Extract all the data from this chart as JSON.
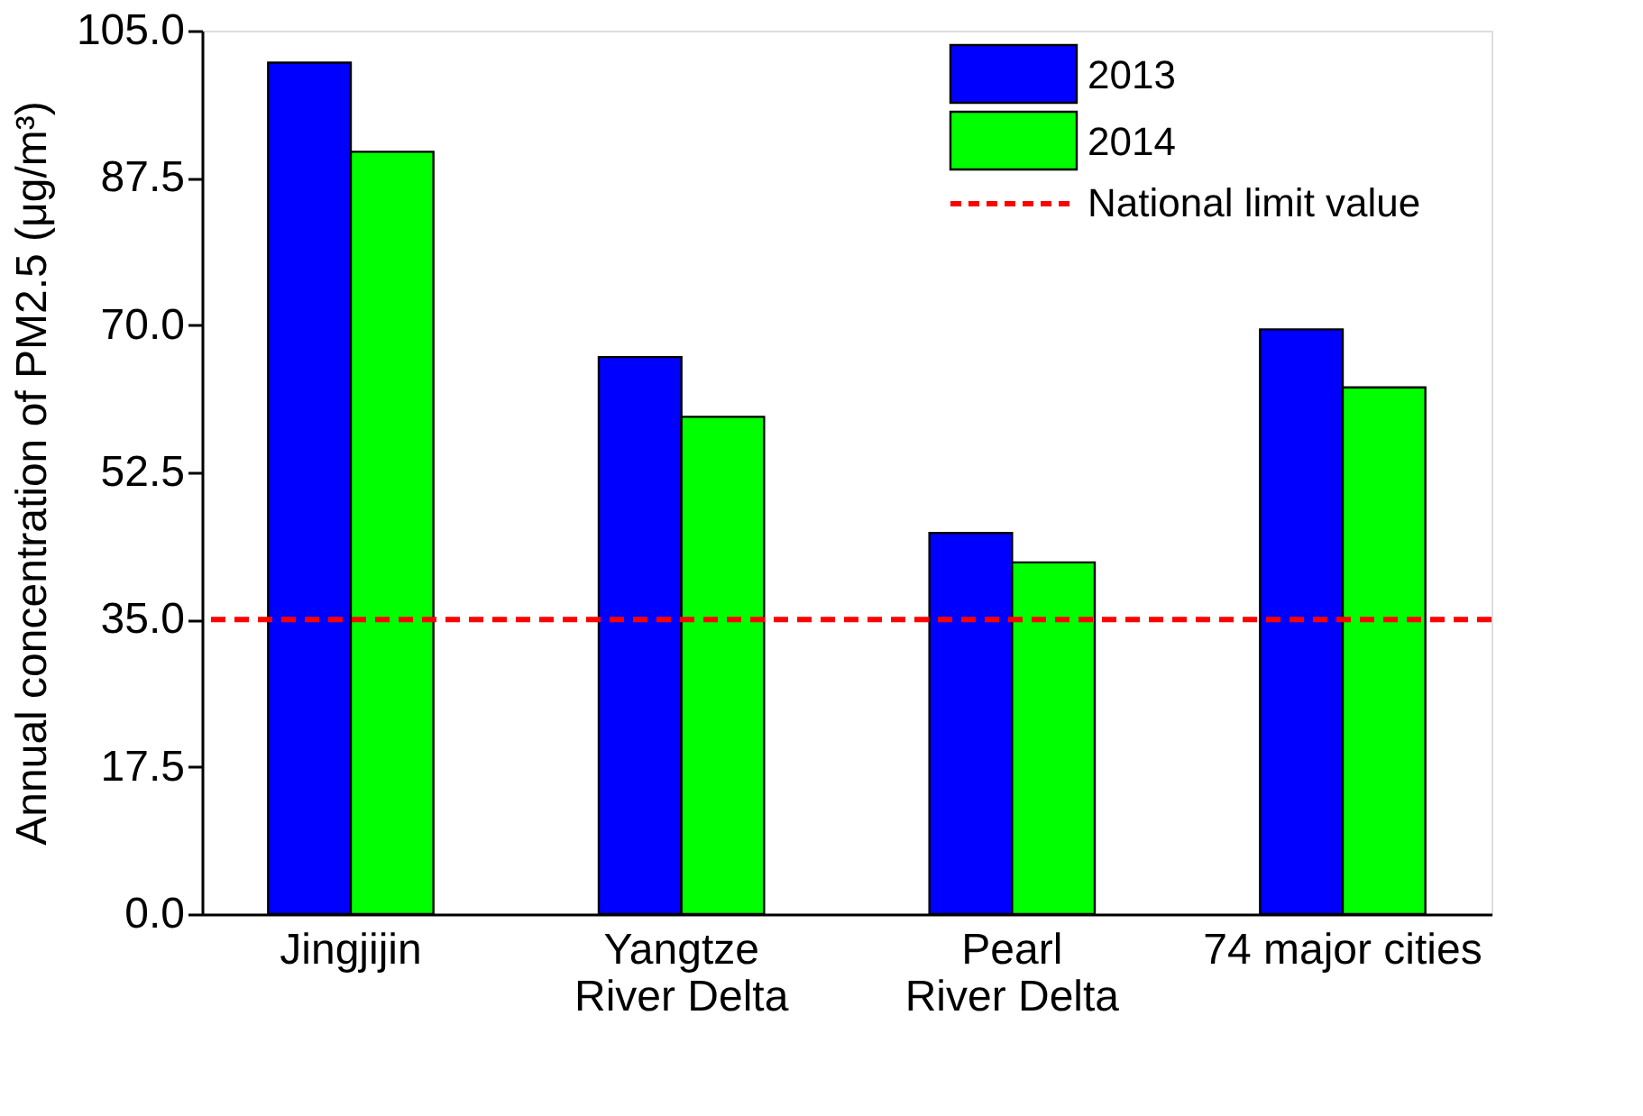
{
  "chart_data": {
    "type": "bar",
    "ylabel": "Annual concentration of PM2.5 (μg/m³)",
    "categories": [
      "Jingjijin",
      "Yangtze\nRiver Delta",
      "Pearl\nRiver Delta",
      "74 major cities"
    ],
    "series": [
      {
        "name": "2013",
        "color": "#0000ff",
        "values": [
          101.2,
          66.2,
          45.3,
          69.5
        ]
      },
      {
        "name": "2014",
        "color": "#00ff00",
        "values": [
          90.6,
          59.1,
          41.8,
          62.6
        ]
      }
    ],
    "ylim": [
      0,
      105
    ],
    "yticks": [
      {
        "value": 0,
        "label": "0.0"
      },
      {
        "value": 17.5,
        "label": "17.5"
      },
      {
        "value": 35,
        "label": "35.0"
      },
      {
        "value": 52.5,
        "label": "52.5"
      },
      {
        "value": 70,
        "label": "70.0"
      },
      {
        "value": 87.5,
        "label": "87.5"
      },
      {
        "value": 105,
        "label": "105.0"
      }
    ],
    "ref_lines": [
      {
        "axis": "y",
        "value": 35,
        "label": "National limit value",
        "color": "#ff0000",
        "line_style": "dashed"
      }
    ],
    "legend": "top right",
    "grid": false
  }
}
